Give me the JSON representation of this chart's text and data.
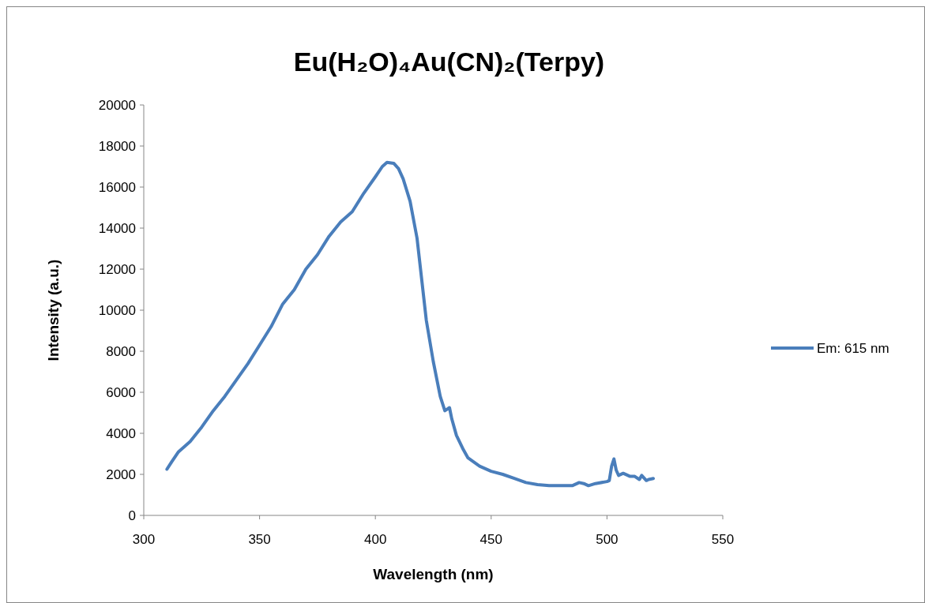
{
  "chart_data": {
    "type": "line",
    "title": "Eu(H₂O)₄Au(CN)₂(Terpy)",
    "xlabel": "Wavelength (nm)",
    "ylabel": "Intensity (a.u.)",
    "xlim": [
      300,
      550
    ],
    "xticks": [
      300,
      350,
      400,
      450,
      500,
      550
    ],
    "ylim": [
      0,
      20000
    ],
    "yticks": [
      0,
      2000,
      4000,
      6000,
      8000,
      10000,
      12000,
      14000,
      16000,
      18000,
      20000
    ],
    "grid": false,
    "legend": "right",
    "line_style": "solid",
    "marker": "none",
    "x": [
      310,
      312,
      315,
      320,
      325,
      330,
      335,
      340,
      345,
      350,
      355,
      360,
      365,
      370,
      375,
      380,
      385,
      390,
      395,
      400,
      403,
      405,
      408,
      410,
      412,
      415,
      418,
      420,
      422,
      425,
      428,
      430,
      432,
      433,
      435,
      438,
      440,
      445,
      450,
      455,
      460,
      465,
      470,
      475,
      480,
      485,
      488,
      490,
      492,
      495,
      500,
      501,
      502,
      503,
      504,
      505,
      507,
      510,
      512,
      514,
      515,
      517,
      518,
      520
    ],
    "series": [
      {
        "name": "Em: 615 nm",
        "color": "#4a7ebb",
        "values": [
          2250,
          2600,
          3100,
          3600,
          4300,
          5100,
          5800,
          6600,
          7400,
          8300,
          9200,
          10300,
          11000,
          12000,
          12700,
          13600,
          14300,
          14800,
          15700,
          16500,
          17000,
          17200,
          17150,
          16900,
          16400,
          15300,
          13500,
          11500,
          9500,
          7500,
          5800,
          5100,
          5250,
          4700,
          3900,
          3200,
          2800,
          2400,
          2150,
          2000,
          1800,
          1600,
          1500,
          1450,
          1450,
          1450,
          1600,
          1550,
          1450,
          1550,
          1650,
          1700,
          2400,
          2750,
          2200,
          1950,
          2050,
          1900,
          1900,
          1750,
          1950,
          1700,
          1750,
          1800
        ]
      }
    ]
  }
}
